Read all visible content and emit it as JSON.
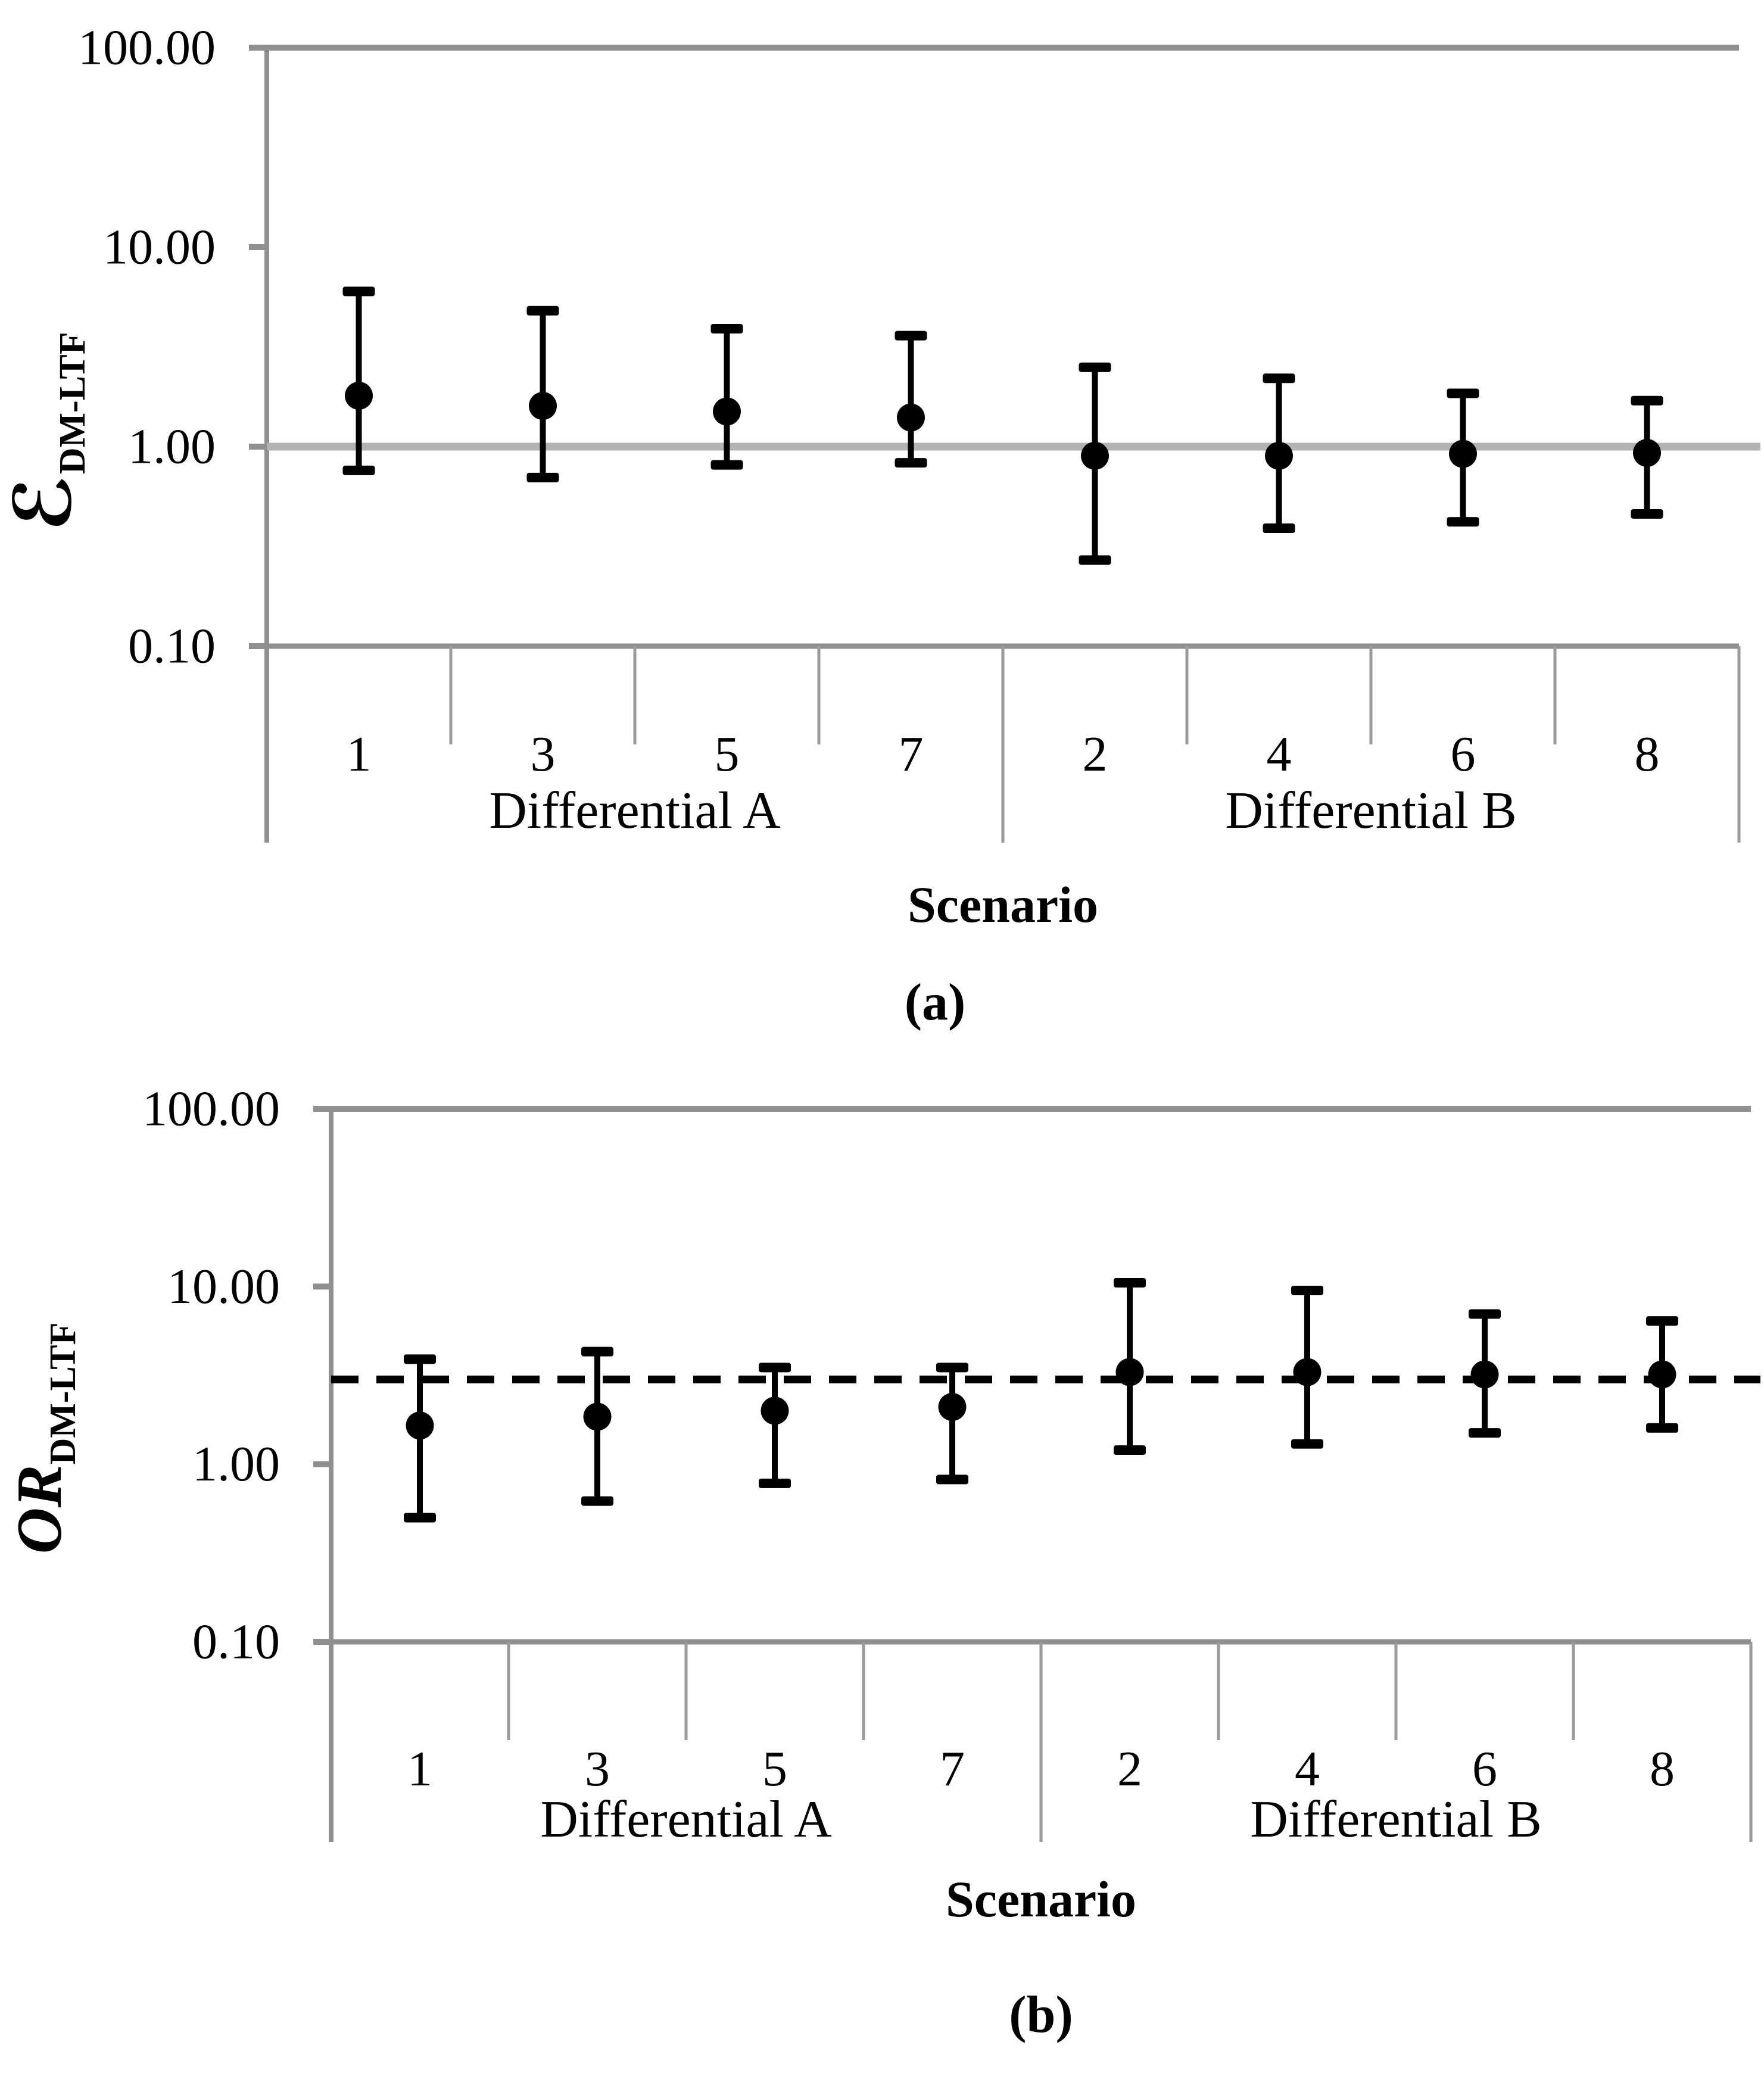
{
  "figure": {
    "caption_a": "(a)",
    "caption_b": "(b)",
    "colors": {
      "black": "#000000",
      "axis_gray": "#8f8f8f",
      "separator_gray": "#9a9a9a",
      "ref_line_gray": "#b2b2b2"
    }
  },
  "chart_data": [
    {
      "type": "scatter",
      "subtype": "errorbar-log",
      "panel_caption": "(a)",
      "ylabel_main": "ℰ",
      "ylabel_sub": "DM-LTF",
      "xlabel": "Scenario",
      "yscale": "log",
      "ylim": [
        0.1,
        100
      ],
      "ytick_values": [
        100,
        10,
        1,
        0.1
      ],
      "ytick_labels": [
        "100.00",
        "10.00",
        "1.00",
        "0.10"
      ],
      "categories": [
        "1",
        "3",
        "5",
        "7",
        "2",
        "4",
        "6",
        "8"
      ],
      "groups": [
        {
          "label": "Differential A",
          "categories": [
            "1",
            "3",
            "5",
            "7"
          ]
        },
        {
          "label": "Differential B",
          "categories": [
            "2",
            "4",
            "6",
            "8"
          ]
        }
      ],
      "ref_line": {
        "value": 1.0,
        "style": "solid",
        "color": "#b2b2b2"
      },
      "points": [
        {
          "scenario": "1",
          "value": 1.8,
          "lo": 0.76,
          "hi": 6.0
        },
        {
          "scenario": "3",
          "value": 1.6,
          "lo": 0.7,
          "hi": 4.8
        },
        {
          "scenario": "5",
          "value": 1.5,
          "lo": 0.81,
          "hi": 3.9
        },
        {
          "scenario": "7",
          "value": 1.4,
          "lo": 0.83,
          "hi": 3.6
        },
        {
          "scenario": "2",
          "value": 0.9,
          "lo": 0.27,
          "hi": 2.5
        },
        {
          "scenario": "4",
          "value": 0.9,
          "lo": 0.39,
          "hi": 2.2
        },
        {
          "scenario": "6",
          "value": 0.92,
          "lo": 0.42,
          "hi": 1.85
        },
        {
          "scenario": "8",
          "value": 0.93,
          "lo": 0.46,
          "hi": 1.7
        }
      ]
    },
    {
      "type": "scatter",
      "subtype": "errorbar-log",
      "panel_caption": "(b)",
      "ylabel_main": "OR",
      "ylabel_sub": "DM-LTF",
      "xlabel": "Scenario",
      "yscale": "log",
      "ylim": [
        0.1,
        100
      ],
      "ytick_values": [
        100,
        10,
        1,
        0.1
      ],
      "ytick_labels": [
        "100.00",
        "10.00",
        "1.00",
        "0.10"
      ],
      "categories": [
        "1",
        "3",
        "5",
        "7",
        "2",
        "4",
        "6",
        "8"
      ],
      "groups": [
        {
          "label": "Differential A",
          "categories": [
            "1",
            "3",
            "5",
            "7"
          ]
        },
        {
          "label": "Differential B",
          "categories": [
            "2",
            "4",
            "6",
            "8"
          ]
        }
      ],
      "ref_line": {
        "value": 3.0,
        "style": "dashed",
        "color": "#000000"
      },
      "points": [
        {
          "scenario": "1",
          "value": 1.65,
          "lo": 0.5,
          "hi": 3.9
        },
        {
          "scenario": "3",
          "value": 1.85,
          "lo": 0.62,
          "hi": 4.3
        },
        {
          "scenario": "5",
          "value": 2.0,
          "lo": 0.78,
          "hi": 3.5
        },
        {
          "scenario": "7",
          "value": 2.1,
          "lo": 0.82,
          "hi": 3.5
        },
        {
          "scenario": "2",
          "value": 3.3,
          "lo": 1.2,
          "hi": 10.5
        },
        {
          "scenario": "4",
          "value": 3.3,
          "lo": 1.3,
          "hi": 9.5
        },
        {
          "scenario": "6",
          "value": 3.2,
          "lo": 1.5,
          "hi": 7.0
        },
        {
          "scenario": "8",
          "value": 3.2,
          "lo": 1.6,
          "hi": 6.4
        }
      ]
    }
  ]
}
